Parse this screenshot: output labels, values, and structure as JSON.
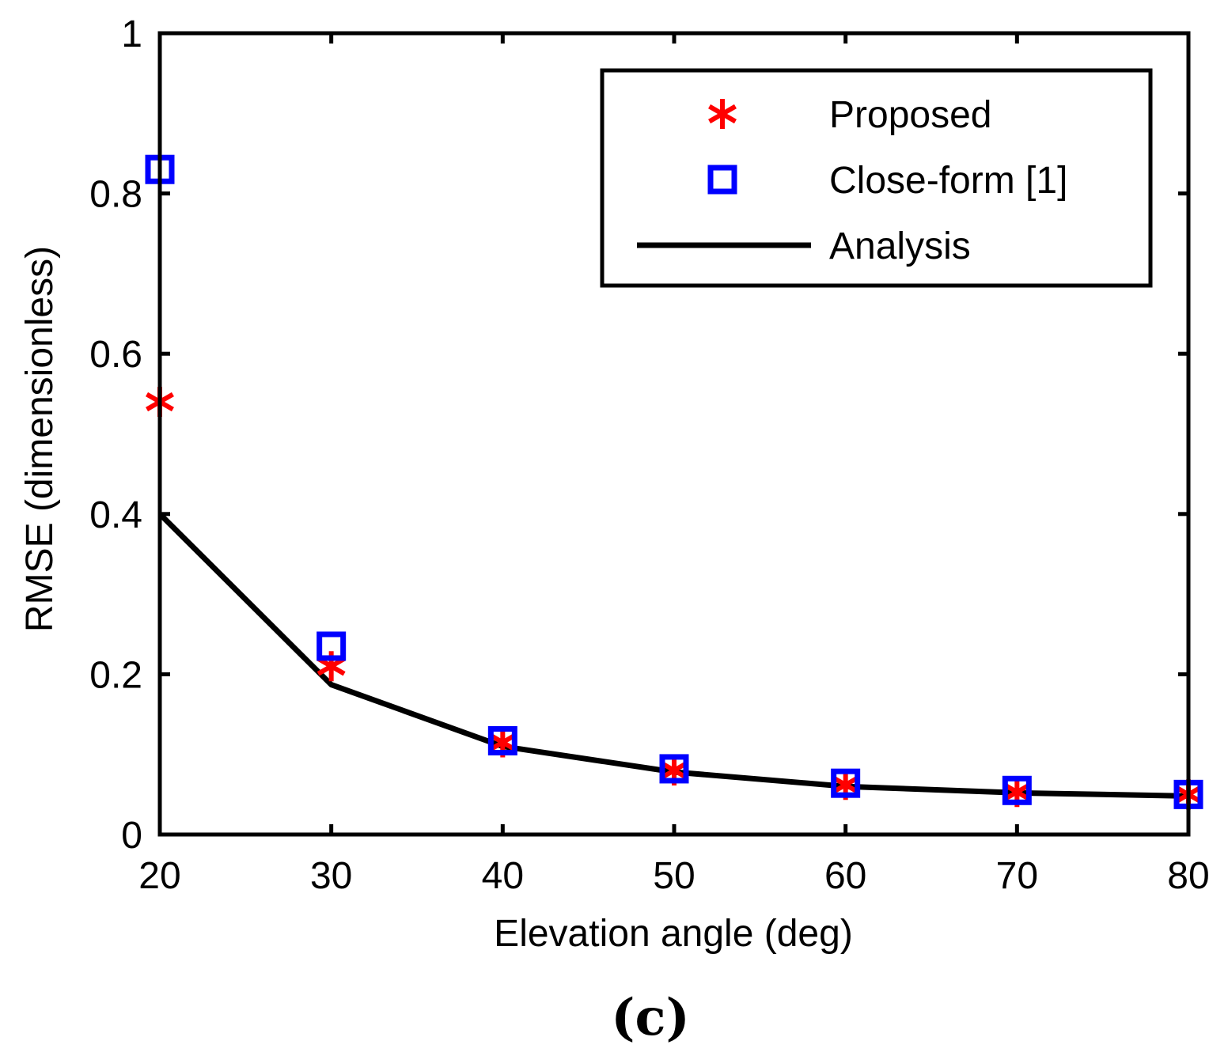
{
  "chart_data": {
    "type": "line",
    "xlabel": "Elevation angle (deg)",
    "ylabel": "RMSE (dimensionless)",
    "xlim": [
      20,
      80
    ],
    "ylim": [
      0,
      1
    ],
    "xticks": [
      20,
      30,
      40,
      50,
      60,
      70,
      80
    ],
    "yticks": [
      0,
      0.2,
      0.4,
      0.6,
      0.8,
      1
    ],
    "ytick_labels": [
      "0",
      "0.2",
      "0.4",
      "0.6",
      "0.8",
      "1"
    ],
    "grid": false,
    "legend_position": "top-right",
    "series": [
      {
        "name": "Proposed",
        "style": "markers",
        "marker": "asterisk",
        "color": "#ff0000",
        "x": [
          20,
          30,
          40,
          50,
          60,
          70,
          80
        ],
        "y": [
          0.54,
          0.21,
          0.115,
          0.08,
          0.062,
          0.053,
          0.05
        ]
      },
      {
        "name": "Close-form [1]",
        "style": "markers",
        "marker": "square",
        "color": "#0000ff",
        "x": [
          20,
          30,
          40,
          50,
          60,
          70,
          80
        ],
        "y": [
          0.83,
          0.235,
          0.117,
          0.082,
          0.064,
          0.055,
          0.05
        ]
      },
      {
        "name": "Analysis",
        "style": "line",
        "color": "#000000",
        "x": [
          20,
          30,
          40,
          50,
          60,
          70,
          80
        ],
        "y": [
          0.4,
          0.187,
          0.11,
          0.078,
          0.06,
          0.052,
          0.048
        ]
      }
    ]
  },
  "caption": "(c)"
}
